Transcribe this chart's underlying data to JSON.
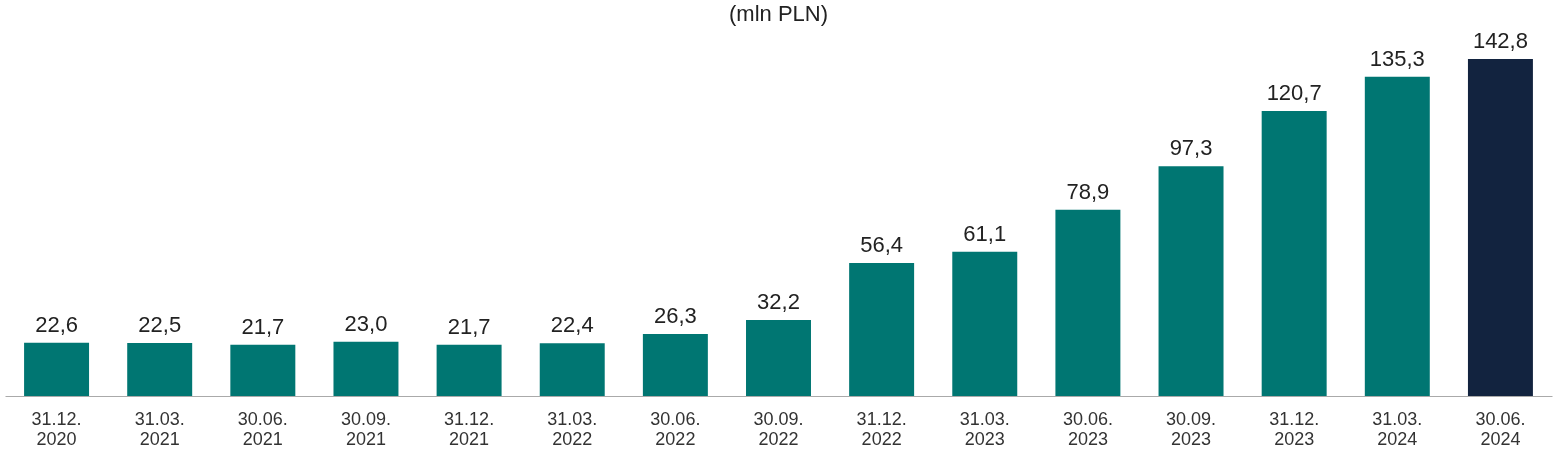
{
  "chart_data": {
    "type": "bar",
    "title": "(mln PLN)",
    "categories": [
      "31.12. 2020",
      "31.03. 2021",
      "30.06. 2021",
      "30.09. 2021",
      "31.12. 2021",
      "31.03. 2022",
      "30.06. 2022",
      "30.09. 2022",
      "31.12. 2022",
      "31.03. 2023",
      "30.06. 2023",
      "30.09. 2023",
      "31.12. 2023",
      "31.03. 2024",
      "30.06. 2024"
    ],
    "values": [
      22.6,
      22.5,
      21.7,
      23.0,
      21.7,
      22.4,
      26.3,
      32.2,
      56.4,
      61.1,
      78.9,
      97.3,
      120.7,
      135.3,
      142.8
    ],
    "value_labels": [
      "22,6",
      "22,5",
      "21,7",
      "23,0",
      "21,7",
      "22,4",
      "26,3",
      "32,2",
      "56,4",
      "61,1",
      "78,9",
      "97,3",
      "120,7",
      "135,3",
      "142,8"
    ],
    "colors": [
      "#007672",
      "#007672",
      "#007672",
      "#007672",
      "#007672",
      "#007672",
      "#007672",
      "#007672",
      "#007672",
      "#007672",
      "#007672",
      "#007672",
      "#007672",
      "#007672",
      "#12233f"
    ],
    "grid": false
  }
}
